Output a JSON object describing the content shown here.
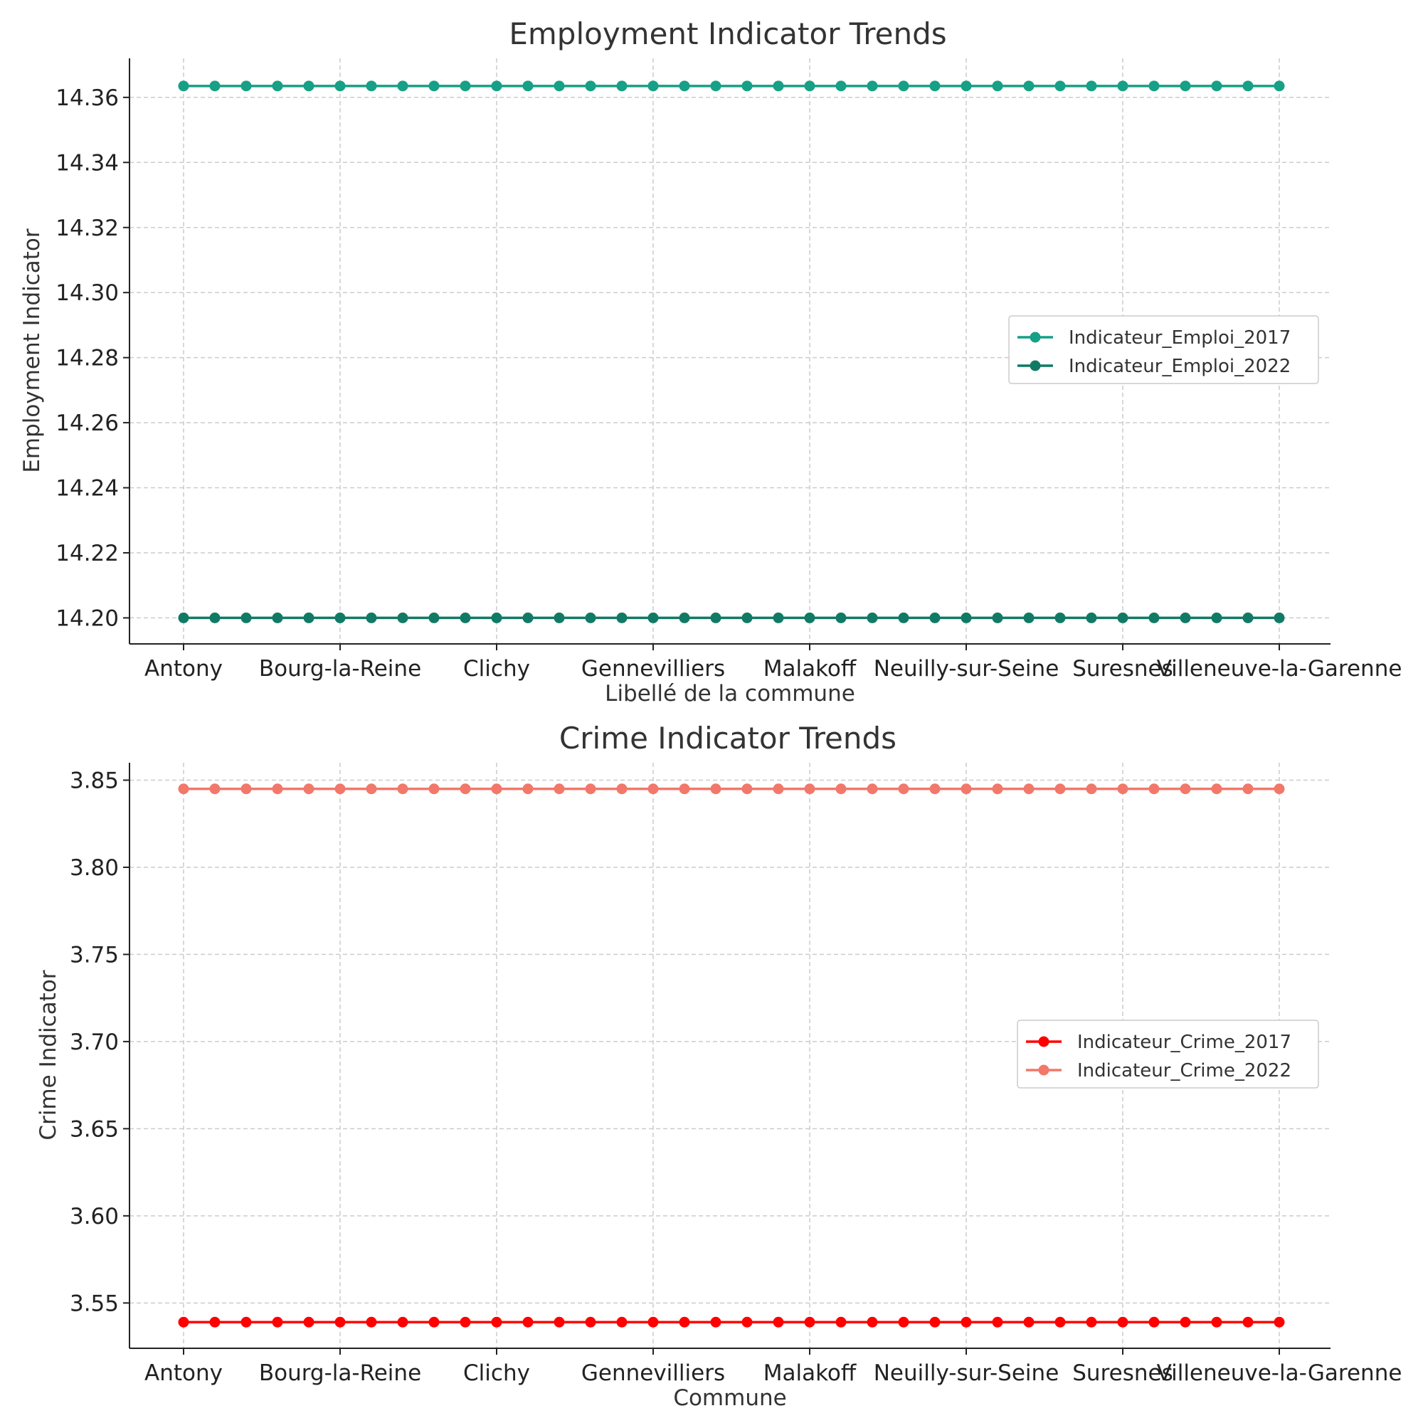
{
  "chart_data": [
    {
      "type": "line",
      "title": "Employment Indicator Trends",
      "xlabel": "Libellé de la commune",
      "ylabel": "Employment Indicator",
      "x_tick_labels": [
        "Antony",
        "Bourg-la-Reine",
        "Clichy",
        "Gennevilliers",
        "Malakoff",
        "Neuilly-sur-Seine",
        "Suresnes",
        "Villeneuve-la-Garenne"
      ],
      "x_tick_every": 5,
      "point_count": 36,
      "yticks": [
        14.2,
        14.22,
        14.24,
        14.26,
        14.28,
        14.3,
        14.32,
        14.34,
        14.36
      ],
      "ylim": [
        14.192,
        14.372
      ],
      "grid": true,
      "legend_position": "center-right",
      "series": [
        {
          "name": "Indicateur_Emploi_2017",
          "value": 14.3635,
          "color": "#16a085"
        },
        {
          "name": "Indicateur_Emploi_2022",
          "value": 14.2,
          "color": "#117a65"
        }
      ]
    },
    {
      "type": "line",
      "title": "Crime Indicator Trends",
      "xlabel": "Commune",
      "ylabel": "Crime Indicator",
      "x_tick_labels": [
        "Antony",
        "Bourg-la-Reine",
        "Clichy",
        "Gennevilliers",
        "Malakoff",
        "Neuilly-sur-Seine",
        "Suresnes",
        "Villeneuve-la-Garenne"
      ],
      "x_tick_every": 5,
      "point_count": 36,
      "yticks": [
        3.55,
        3.6,
        3.65,
        3.7,
        3.75,
        3.8,
        3.85
      ],
      "ylim": [
        3.524,
        3.86
      ],
      "grid": true,
      "legend_position": "center-right",
      "series": [
        {
          "name": "Indicateur_Crime_2017",
          "value": 3.539,
          "color": "#ff0000"
        },
        {
          "name": "Indicateur_Crime_2022",
          "value": 3.845,
          "color": "#f1786a"
        }
      ]
    }
  ]
}
